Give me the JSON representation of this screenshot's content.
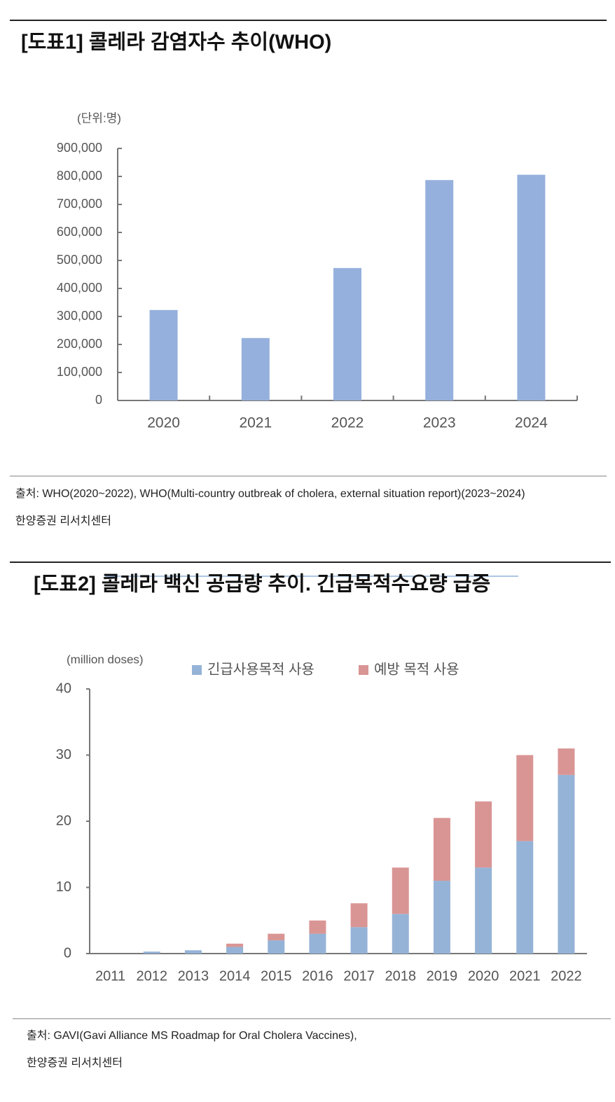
{
  "chart_data": [
    {
      "type": "bar",
      "title": "[도표1] 콜레라 감염자수 추이(WHO)",
      "unit_label": "(단위:명)",
      "categories": [
        "2020",
        "2021",
        "2022",
        "2023",
        "2024"
      ],
      "values": [
        323000,
        223000,
        473000,
        787000,
        806000
      ],
      "color": "#95b0dc",
      "ylim": [
        0,
        900000
      ],
      "yticks": [
        0,
        {
          "value": 100000,
          "label": "100,000"
        },
        {
          "value": 200000,
          "label": "200,000"
        },
        {
          "value": 300000,
          "label": "300,000"
        },
        {
          "value": 400000,
          "label": "400,000"
        },
        {
          "value": 500000,
          "label": "500,000"
        },
        {
          "value": 600000,
          "label": "600,000"
        },
        {
          "value": 700000,
          "label": "700,000"
        },
        {
          "value": 800000,
          "label": "800,000"
        },
        {
          "value": 900000,
          "label": "900,000"
        }
      ],
      "source": "출처: WHO(2020~2022), WHO(Multi-country outbreak of cholera, external situation report)(2023~2024)",
      "source_org": "한양증권 리서치센터"
    },
    {
      "type": "stacked_bar",
      "title": "[도표2] 콜레라 백신 공급량 추이. 긴급목적수요량 급증",
      "unit_label": "(million doses)",
      "categories": [
        "2011",
        "2012",
        "2013",
        "2014",
        "2015",
        "2016",
        "2017",
        "2018",
        "2019",
        "2020",
        "2021",
        "2022"
      ],
      "series": [
        {
          "name": "긴급사용목적 사용",
          "color": "#95b3d7",
          "values": [
            0,
            0.3,
            0.5,
            1,
            2,
            3,
            4,
            6,
            11,
            13,
            17,
            27
          ]
        },
        {
          "name": "예방 목적 사용",
          "color": "#d99594",
          "values": [
            0,
            0,
            0,
            0.5,
            1,
            2,
            3.6,
            7,
            9.5,
            10,
            13,
            4
          ]
        }
      ],
      "ylim": [
        0,
        40
      ],
      "yticks": [
        0,
        10,
        20,
        30,
        40
      ],
      "source": "출처: GAVI(Gavi Alliance MS Roadmap for Oral Cholera Vaccines),",
      "source_org": "한양증권 리서치센터"
    }
  ]
}
